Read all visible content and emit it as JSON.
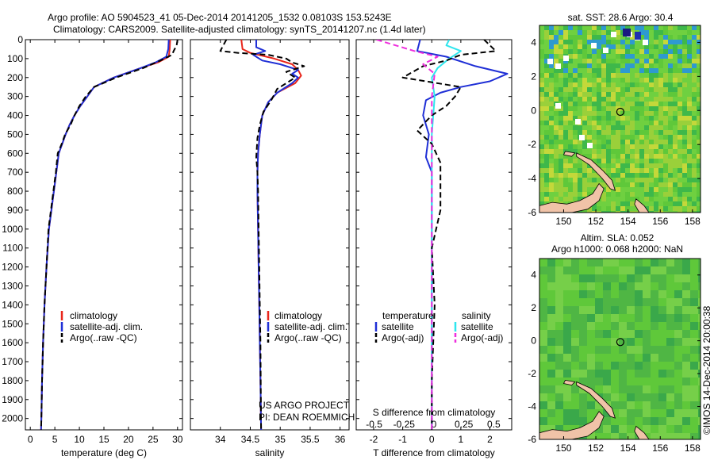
{
  "header": {
    "line1": "Argo profile: AO 5904523_41 05-Dec-2014 20141205_1532 0.08103S 153.5243E",
    "line2": "Climatology: CARS2009. Satellite-adjusted climatology: synTS_20141207.nc (1.4d later)"
  },
  "credit": "©IMOS 14-Dec-2014 20:00:38",
  "colors": {
    "climatology": "#e8261b",
    "satellite": "#1f2fd6",
    "argo": "#000000",
    "satellite_salinity": "#2ee6ee",
    "argo_salinity": "#ee2edd",
    "map_water": "#5fc83a",
    "map_land": "#f0c3a8"
  },
  "panels": {
    "temperature": {
      "xlabel": "temperature (deg C)",
      "legend": [
        "climatology",
        "satellite-adj. clim.",
        "Argo(..raw -QC)"
      ]
    },
    "salinity": {
      "xlabel": "salinity",
      "legend": [
        "climatology",
        "satellite-adj. clim.",
        "Argo(..raw -QC)"
      ],
      "note1": "US ARGO PROJECT",
      "note2": "PI: DEAN ROEMMICH"
    },
    "difference": {
      "xlabel": "T difference from climatology",
      "top_label": "S difference from climatology",
      "legend_headers": [
        "temperature",
        "salinity"
      ],
      "legend": [
        "satellite",
        "Argo(-adj)",
        "satellite",
        "Argo(-adj)"
      ]
    },
    "map_sst": {
      "title": "sat. SST: 28.6 Argo: 30.4"
    },
    "map_sla": {
      "title1": "Altim. SLA: 0.052",
      "title2": "Argo h1000: 0.068 h2000: NaN"
    }
  },
  "chart_data": [
    {
      "type": "line",
      "title": "",
      "xlabel": "temperature (deg C)",
      "ylabel": "",
      "xlim": [
        -1,
        31
      ],
      "ylim": [
        2060,
        0
      ],
      "xticks": [
        0,
        5,
        10,
        15,
        20,
        25,
        30
      ],
      "yticks": [
        0,
        100,
        200,
        300,
        400,
        500,
        600,
        700,
        800,
        900,
        1000,
        1100,
        1200,
        1300,
        1400,
        1500,
        1600,
        1700,
        1800,
        1900,
        2000
      ],
      "series": [
        {
          "name": "climatology",
          "dash": "solid",
          "x": [
            28.5,
            28.4,
            28.2,
            26,
            22.5,
            17,
            13,
            11.6,
            10.2,
            9,
            8,
            7.2,
            6.5,
            5.8,
            5.3,
            4.8,
            4.3,
            3.8,
            3.3,
            2.9,
            2.6,
            2.4,
            2.3,
            2.2
          ],
          "y": [
            0,
            50,
            90,
            120,
            150,
            200,
            250,
            300,
            350,
            400,
            450,
            500,
            550,
            600,
            700,
            800,
            900,
            1000,
            1200,
            1400,
            1600,
            1800,
            1950,
            2060
          ]
        },
        {
          "name": "satellite-adj. clim.",
          "dash": "solid",
          "x": [
            28.2,
            28.1,
            27.7,
            25.5,
            22.5,
            17,
            13,
            11.6,
            10.2,
            9,
            8,
            7.2,
            6.5,
            5.8,
            5.3,
            4.8,
            4.3,
            3.8,
            3.3,
            2.9,
            2.6,
            2.4,
            2.3,
            2.2
          ],
          "y": [
            0,
            50,
            90,
            120,
            150,
            200,
            250,
            300,
            350,
            400,
            450,
            500,
            550,
            600,
            700,
            800,
            900,
            1000,
            1200,
            1400,
            1600,
            1800,
            1950,
            2060
          ]
        },
        {
          "name": "Argo(..raw -QC)",
          "dash": "dashed",
          "x": [
            30.0,
            29.8,
            29.2,
            28.9,
            26.5,
            23,
            17.5,
            13,
            11.3,
            10,
            9,
            8.2,
            7.1,
            6.4,
            5.6,
            5.2,
            4.7,
            4.2,
            3.7,
            3.3,
            2.9,
            2.6,
            2.4,
            2.3,
            2.2
          ],
          "y": [
            0,
            30,
            60,
            80,
            110,
            150,
            200,
            250,
            300,
            350,
            400,
            450,
            500,
            550,
            600,
            700,
            800,
            900,
            1000,
            1200,
            1400,
            1600,
            1800,
            1950,
            2060
          ]
        }
      ]
    },
    {
      "type": "line",
      "title": "",
      "xlabel": "salinity",
      "ylabel": "",
      "xlim": [
        33.5,
        36.15
      ],
      "ylim": [
        2060,
        0
      ],
      "xticks": [
        34,
        34.5,
        35,
        35.5,
        36
      ],
      "series": [
        {
          "name": "climatology",
          "dash": "solid",
          "x": [
            34.35,
            34.37,
            34.5,
            34.9,
            35.2,
            35.3,
            35.35,
            35.25,
            34.95,
            34.8,
            34.7,
            34.66,
            34.63,
            34.62,
            34.62,
            34.63,
            34.64,
            34.65,
            34.66,
            34.67,
            34.68
          ],
          "y": [
            0,
            50,
            70,
            100,
            130,
            160,
            190,
            230,
            280,
            330,
            400,
            500,
            600,
            700,
            800,
            1000,
            1200,
            1400,
            1600,
            1800,
            2060
          ]
        },
        {
          "name": "satellite-adj. clim.",
          "dash": "solid",
          "x": [
            34.6,
            34.6,
            34.75,
            34.55,
            34.7,
            35.0,
            35.3,
            35.2,
            35.3,
            35.2,
            34.95,
            34.8,
            34.7,
            34.66,
            34.63,
            34.62,
            34.62,
            34.63,
            34.64,
            34.65,
            34.66,
            34.67,
            34.68
          ],
          "y": [
            0,
            40,
            60,
            80,
            110,
            130,
            160,
            180,
            200,
            230,
            280,
            330,
            400,
            500,
            600,
            700,
            800,
            1000,
            1200,
            1400,
            1600,
            1800,
            2060
          ]
        },
        {
          "name": "Argo(..raw -QC)",
          "dash": "dashed",
          "x": [
            34.1,
            34.0,
            34.3,
            34.8,
            35.1,
            35.2,
            35.4,
            35.1,
            35.25,
            34.95,
            34.85,
            34.72,
            34.66,
            34.62,
            34.6,
            34.62,
            34.63,
            34.64,
            34.65,
            34.66,
            34.67,
            34.68
          ],
          "y": [
            0,
            60,
            70,
            80,
            100,
            120,
            140,
            170,
            200,
            260,
            320,
            380,
            450,
            520,
            620,
            700,
            800,
            1000,
            1200,
            1400,
            1600,
            2060
          ]
        }
      ]
    },
    {
      "type": "line",
      "title": "",
      "xlabel": "T difference from climatology",
      "ylabel": "",
      "xlim": [
        -2.6,
        2.75
      ],
      "ylim": [
        2060,
        0
      ],
      "xticks": [
        -2,
        -1,
        0,
        1,
        2
      ],
      "top_axis": {
        "label": "S difference from climatology",
        "ticks": [
          -0.5,
          -0.25,
          0,
          0.25,
          0.5
        ]
      },
      "series": [
        {
          "name": "temperature satellite",
          "dash": "solid",
          "x": [
            -0.4,
            -0.5,
            0.5,
            1.5,
            2.6,
            2.0,
            1.0,
            0.3,
            -0.2,
            -0.3,
            -0.1,
            -0.2,
            0.0,
            0.0,
            0.0,
            0.0,
            0.0,
            0.0
          ],
          "y": [
            0,
            60,
            90,
            140,
            180,
            220,
            250,
            280,
            320,
            400,
            500,
            620,
            700,
            800,
            1000,
            1400,
            1800,
            2060
          ]
        },
        {
          "name": "satellite",
          "dash": "solid",
          "x": [
            0.6,
            0.5,
            1.0,
            0.6,
            0.2,
            0.0,
            0.1,
            0.0,
            0.0,
            0.0,
            0.0,
            0.0,
            0.0
          ],
          "y": [
            0,
            30,
            60,
            100,
            150,
            200,
            300,
            500,
            700,
            1000,
            1400,
            1800,
            2060
          ]
        },
        {
          "name": "temperature Argo(-adj)",
          "dash": "dashed",
          "x": [
            1.8,
            2.2,
            1.0,
            0.5,
            -0.3,
            -1.0,
            1.0,
            0.8,
            0.5,
            0.0,
            -0.5,
            0.0,
            0.3,
            0.3,
            0.0,
            0.1,
            0.0,
            0.0
          ],
          "y": [
            0,
            60,
            80,
            110,
            140,
            200,
            250,
            300,
            350,
            400,
            480,
            550,
            650,
            900,
            1100,
            1400,
            1800,
            2060
          ]
        },
        {
          "name": "salinity Argo(-adj)",
          "dash": "dashed",
          "x": [
            -1.9,
            -0.6,
            0.2,
            -0.3,
            0.1,
            0.0,
            0.0,
            0.0,
            0.0,
            0.0
          ],
          "y": [
            0,
            60,
            90,
            130,
            180,
            300,
            700,
            1100,
            1500,
            2060
          ]
        }
      ]
    },
    {
      "type": "heatmap",
      "title": "sat. SST: 28.6 Argo: 30.4",
      "xlabel": "",
      "ylabel": "",
      "xlim": [
        148.5,
        158.5
      ],
      "ylim": [
        -6,
        5
      ],
      "xticks": [
        150,
        152,
        154,
        156,
        158
      ],
      "yticks": [
        -6,
        -4,
        -2,
        0,
        2,
        4
      ],
      "profile_marker": {
        "lon": 153.52,
        "lat": -0.08
      }
    },
    {
      "type": "heatmap",
      "title": "Altim. SLA: 0.052",
      "xlabel": "",
      "ylabel": "",
      "xlim": [
        148.5,
        158.5
      ],
      "ylim": [
        -6,
        5
      ],
      "xticks": [
        150,
        152,
        154,
        156,
        158
      ],
      "yticks": [
        -6,
        -4,
        -2,
        0,
        2,
        4
      ],
      "profile_marker": {
        "lon": 153.52,
        "lat": -0.08
      }
    }
  ]
}
